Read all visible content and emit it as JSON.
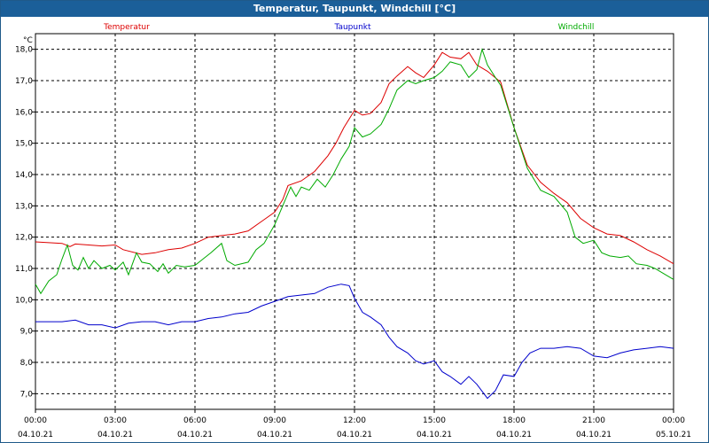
{
  "window": {
    "title": "Temperatur, Taupunkt, Windchill [°C]"
  },
  "chart_data": {
    "type": "line",
    "ylabel": "°C",
    "ylim": [
      6.5,
      18.5
    ],
    "yticks": [
      7.0,
      8.0,
      9.0,
      10.0,
      11.0,
      12.0,
      13.0,
      14.0,
      15.0,
      16.0,
      17.0,
      18.0
    ],
    "ytick_labels": [
      "7,0",
      "8,0",
      "9,0",
      "10,0",
      "11,0",
      "12,0",
      "13,0",
      "14,0",
      "15,0",
      "16,0",
      "17,0",
      "18,0"
    ],
    "xlim": [
      0,
      24
    ],
    "xticks": [
      0,
      3,
      6,
      9,
      12,
      15,
      18,
      21,
      24
    ],
    "xtick_time_labels": [
      "00:00",
      "03:00",
      "06:00",
      "09:00",
      "12:00",
      "15:00",
      "18:00",
      "21:00",
      "00:00"
    ],
    "xtick_date_labels": [
      "04.10.21",
      "04.10.21",
      "04.10.21",
      "04.10.21",
      "04.10.21",
      "04.10.21",
      "04.10.21",
      "04.10.21",
      "05.10.21"
    ],
    "grid": true,
    "series": [
      {
        "name": "Temperatur",
        "color": "#dd0000",
        "points": [
          [
            0,
            11.85
          ],
          [
            1,
            11.8
          ],
          [
            1.3,
            11.7
          ],
          [
            1.5,
            11.78
          ],
          [
            2,
            11.75
          ],
          [
            2.5,
            11.72
          ],
          [
            3,
            11.75
          ],
          [
            3.3,
            11.6
          ],
          [
            4,
            11.45
          ],
          [
            4.5,
            11.5
          ],
          [
            5,
            11.6
          ],
          [
            5.5,
            11.65
          ],
          [
            6,
            11.8
          ],
          [
            6.5,
            12.0
          ],
          [
            7,
            12.05
          ],
          [
            7.5,
            12.1
          ],
          [
            8,
            12.2
          ],
          [
            8.5,
            12.5
          ],
          [
            9,
            12.8
          ],
          [
            9.3,
            13.2
          ],
          [
            9.5,
            13.65
          ],
          [
            10,
            13.8
          ],
          [
            10.5,
            14.1
          ],
          [
            11,
            14.6
          ],
          [
            11.3,
            15.0
          ],
          [
            11.6,
            15.5
          ],
          [
            12,
            16.05
          ],
          [
            12.3,
            15.9
          ],
          [
            12.6,
            15.95
          ],
          [
            13,
            16.3
          ],
          [
            13.3,
            16.9
          ],
          [
            13.6,
            17.15
          ],
          [
            14,
            17.45
          ],
          [
            14.3,
            17.25
          ],
          [
            14.6,
            17.1
          ],
          [
            15,
            17.5
          ],
          [
            15.3,
            17.9
          ],
          [
            15.6,
            17.75
          ],
          [
            16,
            17.7
          ],
          [
            16.3,
            17.9
          ],
          [
            16.6,
            17.5
          ],
          [
            17,
            17.3
          ],
          [
            17.5,
            16.95
          ],
          [
            18,
            15.5
          ],
          [
            18.5,
            14.3
          ],
          [
            19,
            13.75
          ],
          [
            19.5,
            13.4
          ],
          [
            20,
            13.1
          ],
          [
            20.5,
            12.6
          ],
          [
            21,
            12.3
          ],
          [
            21.5,
            12.1
          ],
          [
            22,
            12.05
          ],
          [
            22.5,
            11.85
          ],
          [
            23,
            11.6
          ],
          [
            23.5,
            11.4
          ],
          [
            24,
            11.15
          ]
        ]
      },
      {
        "name": "Taupunkt",
        "color": "#0000cc",
        "points": [
          [
            0,
            9.3
          ],
          [
            1,
            9.3
          ],
          [
            1.5,
            9.35
          ],
          [
            2,
            9.2
          ],
          [
            2.5,
            9.2
          ],
          [
            3,
            9.1
          ],
          [
            3.5,
            9.25
          ],
          [
            4,
            9.3
          ],
          [
            4.5,
            9.3
          ],
          [
            5,
            9.2
          ],
          [
            5.5,
            9.3
          ],
          [
            6,
            9.3
          ],
          [
            6.5,
            9.4
          ],
          [
            7,
            9.45
          ],
          [
            7.5,
            9.55
          ],
          [
            8,
            9.6
          ],
          [
            8.5,
            9.8
          ],
          [
            9,
            9.95
          ],
          [
            9.5,
            10.1
          ],
          [
            10,
            10.15
          ],
          [
            10.5,
            10.2
          ],
          [
            11,
            10.4
          ],
          [
            11.5,
            10.5
          ],
          [
            11.8,
            10.45
          ],
          [
            12,
            10.05
          ],
          [
            12.3,
            9.6
          ],
          [
            12.6,
            9.45
          ],
          [
            13,
            9.2
          ],
          [
            13.3,
            8.8
          ],
          [
            13.6,
            8.5
          ],
          [
            14,
            8.3
          ],
          [
            14.3,
            8.05
          ],
          [
            14.6,
            7.95
          ],
          [
            15,
            8.05
          ],
          [
            15.3,
            7.7
          ],
          [
            15.6,
            7.55
          ],
          [
            16,
            7.3
          ],
          [
            16.3,
            7.55
          ],
          [
            16.6,
            7.3
          ],
          [
            17,
            6.85
          ],
          [
            17.3,
            7.1
          ],
          [
            17.6,
            7.6
          ],
          [
            18,
            7.55
          ],
          [
            18.3,
            8.0
          ],
          [
            18.6,
            8.3
          ],
          [
            19,
            8.45
          ],
          [
            19.5,
            8.45
          ],
          [
            20,
            8.5
          ],
          [
            20.5,
            8.45
          ],
          [
            21,
            8.2
          ],
          [
            21.5,
            8.15
          ],
          [
            22,
            8.3
          ],
          [
            22.5,
            8.4
          ],
          [
            23,
            8.45
          ],
          [
            23.5,
            8.5
          ],
          [
            24,
            8.45
          ]
        ]
      },
      {
        "name": "Windchill",
        "color": "#00aa00",
        "points": [
          [
            0,
            10.5
          ],
          [
            0.2,
            10.2
          ],
          [
            0.5,
            10.6
          ],
          [
            0.8,
            10.8
          ],
          [
            1,
            11.3
          ],
          [
            1.2,
            11.75
          ],
          [
            1.4,
            11.1
          ],
          [
            1.6,
            10.95
          ],
          [
            1.8,
            11.35
          ],
          [
            2,
            11.0
          ],
          [
            2.2,
            11.25
          ],
          [
            2.5,
            11.0
          ],
          [
            2.8,
            11.1
          ],
          [
            3,
            10.95
          ],
          [
            3.3,
            11.2
          ],
          [
            3.5,
            10.8
          ],
          [
            3.8,
            11.5
          ],
          [
            4,
            11.2
          ],
          [
            4.3,
            11.15
          ],
          [
            4.6,
            10.9
          ],
          [
            4.8,
            11.15
          ],
          [
            5,
            10.85
          ],
          [
            5.3,
            11.1
          ],
          [
            5.6,
            11.05
          ],
          [
            6,
            11.1
          ],
          [
            6.3,
            11.3
          ],
          [
            6.6,
            11.5
          ],
          [
            7,
            11.8
          ],
          [
            7.2,
            11.25
          ],
          [
            7.5,
            11.1
          ],
          [
            8,
            11.2
          ],
          [
            8.3,
            11.6
          ],
          [
            8.6,
            11.8
          ],
          [
            9,
            12.4
          ],
          [
            9.3,
            13.0
          ],
          [
            9.6,
            13.6
          ],
          [
            9.8,
            13.3
          ],
          [
            10,
            13.6
          ],
          [
            10.3,
            13.5
          ],
          [
            10.6,
            13.85
          ],
          [
            10.9,
            13.6
          ],
          [
            11.2,
            14.0
          ],
          [
            11.5,
            14.5
          ],
          [
            11.8,
            14.9
          ],
          [
            12,
            15.5
          ],
          [
            12.3,
            15.2
          ],
          [
            12.6,
            15.3
          ],
          [
            13,
            15.6
          ],
          [
            13.3,
            16.1
          ],
          [
            13.6,
            16.7
          ],
          [
            14,
            17.0
          ],
          [
            14.3,
            16.9
          ],
          [
            14.6,
            17.0
          ],
          [
            15,
            17.1
          ],
          [
            15.3,
            17.3
          ],
          [
            15.6,
            17.6
          ],
          [
            16,
            17.5
          ],
          [
            16.3,
            17.1
          ],
          [
            16.6,
            17.35
          ],
          [
            16.8,
            18.0
          ],
          [
            17,
            17.5
          ],
          [
            17.3,
            17.1
          ],
          [
            17.5,
            16.85
          ],
          [
            18,
            15.5
          ],
          [
            18.5,
            14.2
          ],
          [
            19,
            13.5
          ],
          [
            19.5,
            13.3
          ],
          [
            20,
            12.8
          ],
          [
            20.3,
            12.0
          ],
          [
            20.6,
            11.8
          ],
          [
            21,
            11.9
          ],
          [
            21.3,
            11.5
          ],
          [
            21.6,
            11.4
          ],
          [
            22,
            11.35
          ],
          [
            22.3,
            11.4
          ],
          [
            22.6,
            11.15
          ],
          [
            23,
            11.1
          ],
          [
            23.3,
            11.0
          ],
          [
            23.6,
            10.85
          ],
          [
            24,
            10.65
          ]
        ]
      }
    ]
  }
}
